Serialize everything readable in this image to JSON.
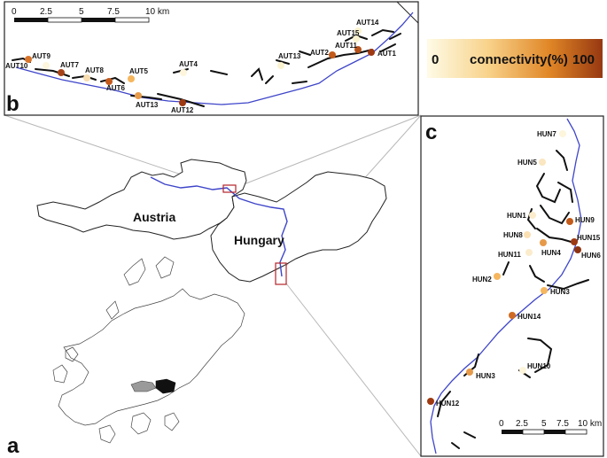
{
  "panels": {
    "a": "a",
    "b": "b",
    "c": "c"
  },
  "countries": {
    "austria": "Austria",
    "hungary": "Hungary"
  },
  "scale_b": {
    "ticks": [
      "0",
      "2.5",
      "5",
      "7.5",
      "10 km"
    ]
  },
  "scale_c": {
    "ticks": [
      "0",
      "2.5",
      "5",
      "7.5",
      "10 km"
    ]
  },
  "legend": {
    "min": "0",
    "label": "connectivity(%)",
    "max": "100",
    "colors": [
      "#fdf7de",
      "#f8cb74",
      "#e0801f",
      "#9b3d12"
    ]
  },
  "colors": {
    "river": "#3e45c9",
    "highlight_box": "#b4232a",
    "connectivity_low": "#fbf3cf",
    "connectivity_mid": "#eda14a",
    "connectivity_high": "#9e3912"
  },
  "sites_b": [
    {
      "label": "AUT14",
      "connectivity": 10
    },
    {
      "label": "AUT15",
      "connectivity": 10
    },
    {
      "label": "AUT11",
      "connectivity": 75
    },
    {
      "label": "AUT2",
      "connectivity": 70
    },
    {
      "label": "AUT1",
      "connectivity": 90
    },
    {
      "label": "AUT13",
      "connectivity": 10
    },
    {
      "label": "AUT4",
      "connectivity": 5
    },
    {
      "label": "AUT5",
      "connectivity": 40
    },
    {
      "label": "AUT9",
      "connectivity": 5
    },
    {
      "label": "AUT10",
      "connectivity": 60
    },
    {
      "label": "AUT7",
      "connectivity": 85
    },
    {
      "label": "AUT8",
      "connectivity": 15
    },
    {
      "label": "AUT6",
      "connectivity": 75
    },
    {
      "label": "AUT13",
      "connectivity": 55
    },
    {
      "label": "AUT12",
      "connectivity": 90
    }
  ],
  "sites_c": [
    {
      "label": "HUN7",
      "connectivity": 5
    },
    {
      "label": "HUN5",
      "connectivity": 15
    },
    {
      "label": "HUN1",
      "connectivity": 10
    },
    {
      "label": "HUN9",
      "connectivity": 75
    },
    {
      "label": "HUN8",
      "connectivity": 15
    },
    {
      "label": "HUN15",
      "connectivity": 90
    },
    {
      "label": "HUN4",
      "connectivity": 55
    },
    {
      "label": "HUN6",
      "connectivity": 95
    },
    {
      "label": "HUN11",
      "connectivity": 10
    },
    {
      "label": "HUN2",
      "connectivity": 40
    },
    {
      "label": "HUN3",
      "connectivity": 40
    },
    {
      "label": "HUN14",
      "connectivity": 70
    },
    {
      "label": "HUN10",
      "connectivity": 5
    },
    {
      "label": "HUN3",
      "connectivity": 55
    },
    {
      "label": "HUN12",
      "connectivity": 90
    }
  ]
}
